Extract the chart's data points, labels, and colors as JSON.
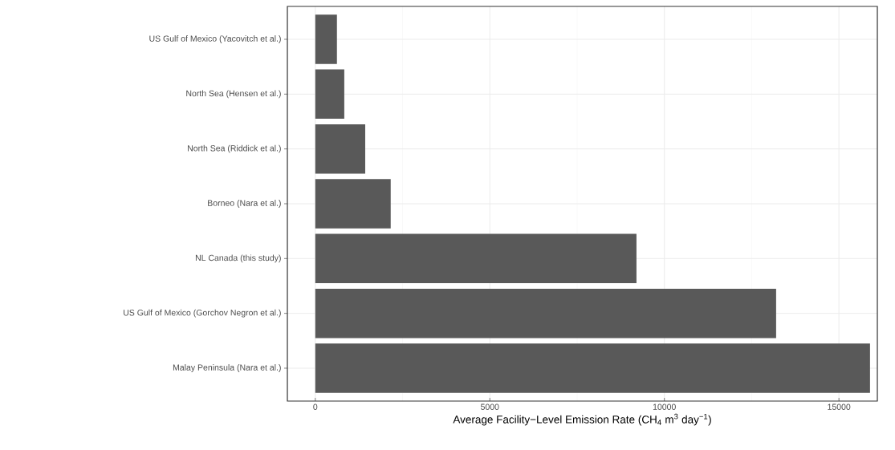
{
  "chart_data": {
    "type": "bar",
    "orientation": "horizontal",
    "categories": [
      "US Gulf of Mexico (Yacovitch et al.)",
      "North Sea (Hensen et al.)",
      "North Sea (Riddick et al.)",
      "Borneo (Nara et al.)",
      "NL Canada (this study)",
      "US Gulf of Mexico (Gorchov Negron et al.)",
      "Malay Peninsula (Nara et al.)"
    ],
    "values": [
      620,
      830,
      1430,
      2160,
      9200,
      13200,
      15890
    ],
    "color": "#595959",
    "xlabel": "Average Facility−Level Emission Rate (CH$_{4}$ m$^{3}$ day$^{−1}$)",
    "xlim": [
      -800,
      16100
    ],
    "xticks": [
      0,
      5000,
      10000,
      15000
    ],
    "grid": true
  }
}
